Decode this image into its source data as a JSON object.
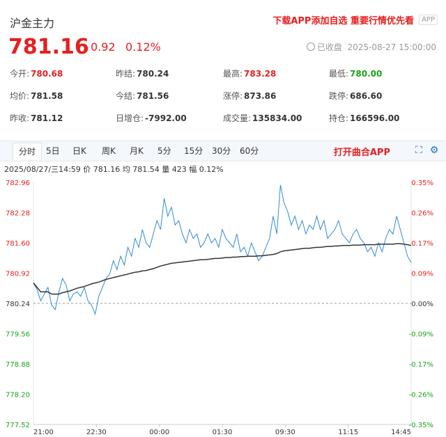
{
  "header": {
    "title": "沪金主力",
    "promo": "下载APP添加自选 重要行情优先看",
    "app_tag": "APP",
    "price": "781.16",
    "change": "0.92",
    "change_pct": "0.12%",
    "status": "已收盘",
    "datetime": "2025-08-27 15:00:00"
  },
  "stats": [
    {
      "label": "今开:",
      "value": "780.68",
      "color": "red"
    },
    {
      "label": "昨结:",
      "value": "780.24",
      "color": "normal"
    },
    {
      "label": "最高:",
      "value": "783.28",
      "color": "red"
    },
    {
      "label": "最低:",
      "value": "780.00",
      "color": "green"
    },
    {
      "label": "均价:",
      "value": "781.58",
      "color": "normal"
    },
    {
      "label": "今结:",
      "value": "781.56",
      "color": "normal"
    },
    {
      "label": "涨停:",
      "value": "873.86",
      "color": "normal"
    },
    {
      "label": "跌停:",
      "value": "686.60",
      "color": "normal"
    },
    {
      "label": "昨收:",
      "value": "781.12",
      "color": "normal"
    },
    {
      "label": "日增仓:",
      "value": "-7992.00",
      "color": "normal"
    },
    {
      "label": "成交量:",
      "value": "135834.00",
      "color": "normal"
    },
    {
      "label": "持仓:",
      "value": "166596.00",
      "color": "normal"
    }
  ],
  "tabs": [
    "分时",
    "5日",
    "日K",
    "周K",
    "月K",
    "5分",
    "15分",
    "30分",
    "60分"
  ],
  "open_app": "打开曲合APP",
  "info_line": "2025/08/27/三14:59  价 781.16  均 781.54  量 423  幅 0.12%",
  "colors": {
    "up": "#e62020",
    "down": "#1aa31a",
    "price_line": "#2f8ad6",
    "avg_line": "#333333"
  },
  "chart_data": {
    "type": "line",
    "y_ticks": [
      "782.96",
      "782.28",
      "781.60",
      "780.92",
      "780.24",
      "779.56",
      "778.88",
      "778.20",
      "777.52"
    ],
    "pct_ticks": [
      "0.35%",
      "0.26%",
      "0.17%",
      "0.09%",
      "0.00%",
      "-0.09%",
      "-0.17%",
      "-0.26%",
      "-0.35%"
    ],
    "x_labels": [
      "21:00",
      "22:30",
      "00:00",
      "01:30",
      "09:30",
      "11:15",
      "14:45"
    ],
    "ylim": [
      777.52,
      782.96
    ],
    "series": [
      {
        "values": [
          780.7,
          780.55,
          780.3,
          780.45,
          780.6,
          780.2,
          780.1,
          780.5,
          780.8,
          780.65,
          780.3,
          780.45,
          780.5,
          780.4,
          780.6,
          780.3,
          780.2,
          780.0,
          780.4,
          780.6,
          780.8,
          780.9,
          781.2,
          781.0,
          781.3,
          781.1,
          781.5,
          781.3,
          781.7,
          781.5,
          781.9,
          781.6,
          781.5,
          781.8,
          782.1,
          781.9,
          782.6,
          782.2,
          782.4,
          782.0,
          782.1,
          781.8,
          781.6,
          781.9,
          781.7,
          781.8,
          781.5,
          781.6,
          781.8,
          781.6,
          781.7,
          781.5,
          781.9,
          781.7,
          781.6,
          781.5,
          781.8,
          781.4,
          781.5,
          781.3,
          781.6,
          781.4,
          781.2,
          781.3,
          781.5,
          781.7,
          782.2,
          781.8,
          782.9,
          782.5,
          782.3,
          782.0,
          782.2,
          781.9,
          782.1,
          781.8,
          782.0,
          781.9,
          782.2,
          781.9,
          782.1,
          781.7,
          781.8,
          781.9,
          782.1,
          781.8,
          781.7,
          781.6,
          781.8,
          781.9,
          781.7,
          781.6,
          781.4,
          781.5,
          781.3,
          781.6,
          781.4,
          781.7,
          781.9,
          781.8,
          782.2,
          781.9,
          781.6,
          781.3,
          781.16
        ]
      },
      {
        "values": [
          780.7,
          780.6,
          780.5,
          780.5,
          780.5,
          780.45,
          780.45,
          780.45,
          780.48,
          780.5,
          780.52,
          780.55,
          780.58,
          780.6,
          780.62,
          780.65,
          780.68,
          780.7,
          780.72,
          780.75,
          780.78,
          780.8,
          780.82,
          780.84,
          780.86,
          780.88,
          780.9,
          780.92,
          780.94,
          780.95,
          780.97,
          780.98,
          781.0,
          781.02,
          781.05,
          781.08,
          781.1,
          781.12,
          781.14,
          781.15,
          781.16,
          781.17,
          781.18,
          781.19,
          781.2,
          781.21,
          781.22,
          781.22,
          781.23,
          781.24,
          781.25,
          781.25,
          781.26,
          781.27,
          781.27,
          781.28,
          781.28,
          781.29,
          781.29,
          781.3,
          781.3,
          781.3,
          781.31,
          781.31,
          781.32,
          781.33,
          781.34,
          781.36,
          781.4,
          781.42,
          781.43,
          781.44,
          781.45,
          781.46,
          781.47,
          781.48,
          781.48,
          781.49,
          781.5,
          781.5,
          781.51,
          781.52,
          781.52,
          781.53,
          781.53,
          781.54,
          781.54,
          781.54,
          781.55,
          781.55,
          781.55,
          781.56,
          781.56,
          781.56,
          781.56,
          781.57,
          781.57,
          781.57,
          781.57,
          781.57,
          781.58,
          781.58,
          781.57,
          781.56,
          781.54
        ]
      }
    ]
  }
}
